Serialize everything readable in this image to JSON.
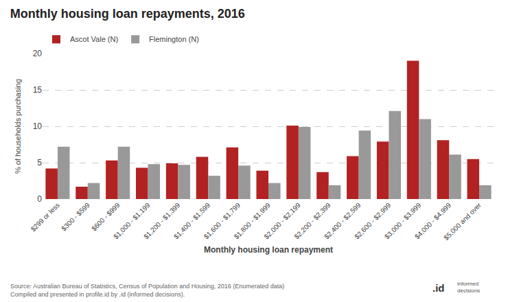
{
  "chart_data": {
    "type": "bar",
    "title": "Monthly housing loan repayments, 2016",
    "x_label": "Monthly housing loan repayment",
    "y_label": "% of households purchasing",
    "categories": [
      "$299 or less",
      "$300 - $599",
      "$600 - $999",
      "$1,000 - $1,199",
      "$1,200 - $1,399",
      "$1,400 - $1,599",
      "$1,600 - $1,799",
      "$1,800 - $1,999",
      "$2,000 - $2,199",
      "$2,200 - $2,399",
      "$2,400 - $2,599",
      "$2,600 - $2,999",
      "$3,000 - $3,999",
      "$4,000 - $4,999",
      "$5,000 and over"
    ],
    "series": [
      {
        "name": "Ascot Vale (N)",
        "color": "#b22222",
        "values": [
          4.2,
          1.7,
          5.3,
          4.3,
          4.9,
          5.8,
          7.1,
          3.9,
          10.1,
          3.7,
          5.9,
          7.9,
          19.0,
          8.1,
          5.5
        ]
      },
      {
        "name": "Flemington (N)",
        "color": "#999999",
        "values": [
          7.2,
          2.2,
          7.2,
          4.8,
          4.7,
          3.2,
          4.6,
          2.2,
          9.9,
          1.9,
          9.4,
          12.1,
          11.0,
          6.1,
          1.9
        ]
      }
    ],
    "ylim": [
      0,
      20
    ],
    "yticks": [
      0,
      5,
      10,
      15,
      20
    ],
    "grid": true,
    "legend": "upper left",
    "annotations": [
      "Source: Australian Bureau of Statistics, Census of Population and Housing, 2016 (Enumerated data)\nCompiled and presented in profile.id by .id (informed decisions).",
      ".id",
      "informed\ndecisions"
    ]
  }
}
